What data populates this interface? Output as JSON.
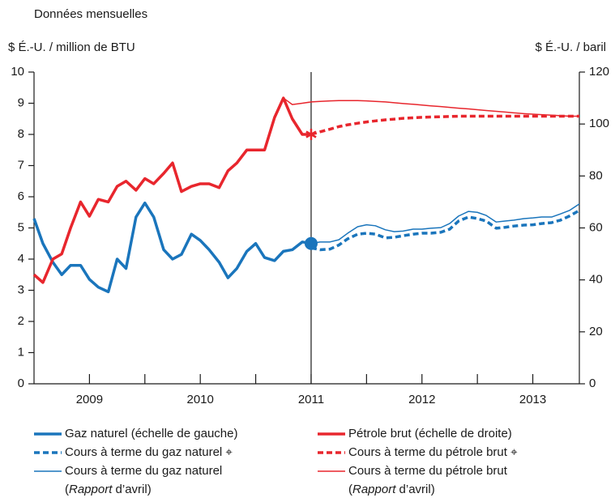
{
  "chart_data": {
    "type": "line",
    "subtitle": "Données mensuelles",
    "y_label": "$ É.-U. / million de BTU",
    "y2_label": "$ É.-U. / baril",
    "xlim": [
      2008.5,
      2013.42
    ],
    "xticks": [
      2009,
      2010,
      2011,
      2012,
      2013
    ],
    "ylim": [
      0,
      10
    ],
    "yticks": [
      0,
      1,
      2,
      3,
      4,
      5,
      6,
      7,
      8,
      9,
      10
    ],
    "y2lim": [
      0,
      120
    ],
    "y2ticks": [
      0,
      20,
      40,
      60,
      80,
      100,
      120
    ],
    "vline": 2011,
    "series": [
      {
        "name": "Gaz naturel (échelle de gauche)",
        "color": "#1a75bc",
        "style": "solid",
        "end_marker": "circle",
        "x": [
          2008.5,
          2008.58,
          2008.67,
          2008.75,
          2008.83,
          2008.92,
          2009,
          2009.08,
          2009.17,
          2009.25,
          2009.33,
          2009.42,
          2009.5,
          2009.58,
          2009.67,
          2009.75,
          2009.83,
          2009.92,
          2010,
          2010.08,
          2010.17,
          2010.25,
          2010.33,
          2010.42,
          2010.5,
          2010.58,
          2010.67,
          2010.75,
          2010.83,
          2010.92,
          2011
        ],
        "values": [
          5.3,
          4.5,
          3.9,
          3.5,
          3.8,
          3.8,
          3.35,
          3.1,
          2.95,
          4,
          3.7,
          5.35,
          5.8,
          5.35,
          4.3,
          4,
          4.15,
          4.8,
          4.6,
          4.3,
          3.9,
          3.4,
          3.7,
          4.25,
          4.5,
          4.05,
          3.95,
          4.25,
          4.3,
          4.55,
          4.5
        ]
      },
      {
        "name": "Pétrole brut (échelle de droite)",
        "color": "#e8262d",
        "style": "solid",
        "axis": "y2",
        "end_marker": "star",
        "x": [
          2008.5,
          2008.58,
          2008.67,
          2008.75,
          2008.83,
          2008.92,
          2009,
          2009.08,
          2009.17,
          2009.25,
          2009.33,
          2009.42,
          2009.5,
          2009.58,
          2009.67,
          2009.75,
          2009.83,
          2009.92,
          2010,
          2010.08,
          2010.17,
          2010.25,
          2010.33,
          2010.42,
          2010.5,
          2010.58,
          2010.67,
          2010.75,
          2010.83,
          2010.92,
          2011
        ],
        "values": [
          42,
          39,
          48,
          50,
          60,
          70,
          64.5,
          71,
          70,
          76,
          78,
          74.5,
          79,
          77,
          81,
          85,
          74,
          76,
          77,
          77,
          75.5,
          82,
          85,
          90,
          90,
          90,
          102.5,
          110,
          102,
          96,
          96
        ]
      },
      {
        "name": "Cours à terme du gaz naturel ⌖",
        "color": "#1a75bc",
        "style": "dashed",
        "x": [
          2011,
          2011.08,
          2011.17,
          2011.25,
          2011.33,
          2011.42,
          2011.5,
          2011.58,
          2011.67,
          2011.75,
          2011.83,
          2011.92,
          2012,
          2012.08,
          2012.17,
          2012.25,
          2012.33,
          2012.42,
          2012.5,
          2012.58,
          2012.67,
          2012.75,
          2012.83,
          2012.92,
          2013,
          2013.08,
          2013.17,
          2013.25,
          2013.33,
          2013.42
        ],
        "values": [
          4.36,
          4.3,
          4.32,
          4.45,
          4.65,
          4.8,
          4.83,
          4.8,
          4.68,
          4.7,
          4.75,
          4.8,
          4.83,
          4.83,
          4.86,
          4.96,
          5.22,
          5.35,
          5.3,
          5.22,
          4.99,
          5.02,
          5.06,
          5.09,
          5.1,
          5.14,
          5.17,
          5.25,
          5.38,
          5.56
        ]
      },
      {
        "name": "Cours à terme du pétrole brut ⌖",
        "color": "#e8262d",
        "style": "dashed",
        "axis": "y2",
        "x": [
          2011,
          2011.08,
          2011.17,
          2011.25,
          2011.33,
          2011.42,
          2011.5,
          2011.58,
          2011.67,
          2011.75,
          2011.83,
          2011.92,
          2012,
          2012.08,
          2012.17,
          2012.25,
          2012.33,
          2012.42,
          2012.5,
          2012.58,
          2012.67,
          2012.75,
          2012.83,
          2012.92,
          2013,
          2013.08,
          2013.17,
          2013.25,
          2013.33,
          2013.42
        ],
        "values": [
          96,
          97,
          98,
          99,
          99.7,
          100.3,
          100.8,
          101.2,
          101.6,
          101.9,
          102.2,
          102.4,
          102.6,
          102.7,
          102.8,
          102.9,
          103,
          103,
          103,
          103,
          103,
          103,
          103,
          103,
          103,
          103,
          103,
          103,
          103,
          103
        ]
      },
      {
        "name": "Cours à terme du gaz naturel",
        "note": {
          "open": "(",
          "italic": "Rapport",
          "close": " d’avril)"
        },
        "color": "#1a75bc",
        "style": "thin",
        "x": [
          2011,
          2011.08,
          2011.17,
          2011.25,
          2011.33,
          2011.42,
          2011.5,
          2011.58,
          2011.67,
          2011.75,
          2011.83,
          2011.92,
          2012,
          2012.08,
          2012.17,
          2012.25,
          2012.33,
          2012.42,
          2012.5,
          2012.58,
          2012.67,
          2012.75,
          2012.83,
          2012.92,
          2013,
          2013.08,
          2013.17,
          2013.25,
          2013.33,
          2013.42
        ],
        "values": [
          4.5,
          4.55,
          4.55,
          4.62,
          4.83,
          5.04,
          5.1,
          5.07,
          4.94,
          4.88,
          4.9,
          4.96,
          4.96,
          4.99,
          5.01,
          5.14,
          5.38,
          5.53,
          5.5,
          5.4,
          5.19,
          5.22,
          5.25,
          5.3,
          5.32,
          5.35,
          5.35,
          5.45,
          5.56,
          5.77
        ]
      },
      {
        "name": "Cours à terme du pétrole brut",
        "note": {
          "open": "(",
          "italic": "Rapport",
          "close": " d’avril)"
        },
        "color": "#e8262d",
        "style": "thin",
        "axis": "y2",
        "x": [
          2010.75,
          2010.83,
          2010.92,
          2011,
          2011.08,
          2011.17,
          2011.25,
          2011.33,
          2011.42,
          2011.5,
          2011.58,
          2011.67,
          2011.75,
          2011.83,
          2011.92,
          2012,
          2012.08,
          2012.17,
          2012.25,
          2012.33,
          2012.42,
          2012.5,
          2012.58,
          2012.67,
          2012.75,
          2012.83,
          2012.92,
          2013,
          2013.08,
          2013.17,
          2013.25,
          2013.33,
          2013.42
        ],
        "values": [
          110,
          107.5,
          108,
          108.5,
          108.7,
          108.9,
          109,
          109,
          109,
          108.9,
          108.7,
          108.5,
          108.2,
          107.9,
          107.6,
          107.3,
          107,
          106.7,
          106.4,
          106.1,
          105.8,
          105.5,
          105.2,
          104.9,
          104.6,
          104.3,
          104,
          103.8,
          103.6,
          103.4,
          103.2,
          103,
          103
        ]
      }
    ]
  }
}
